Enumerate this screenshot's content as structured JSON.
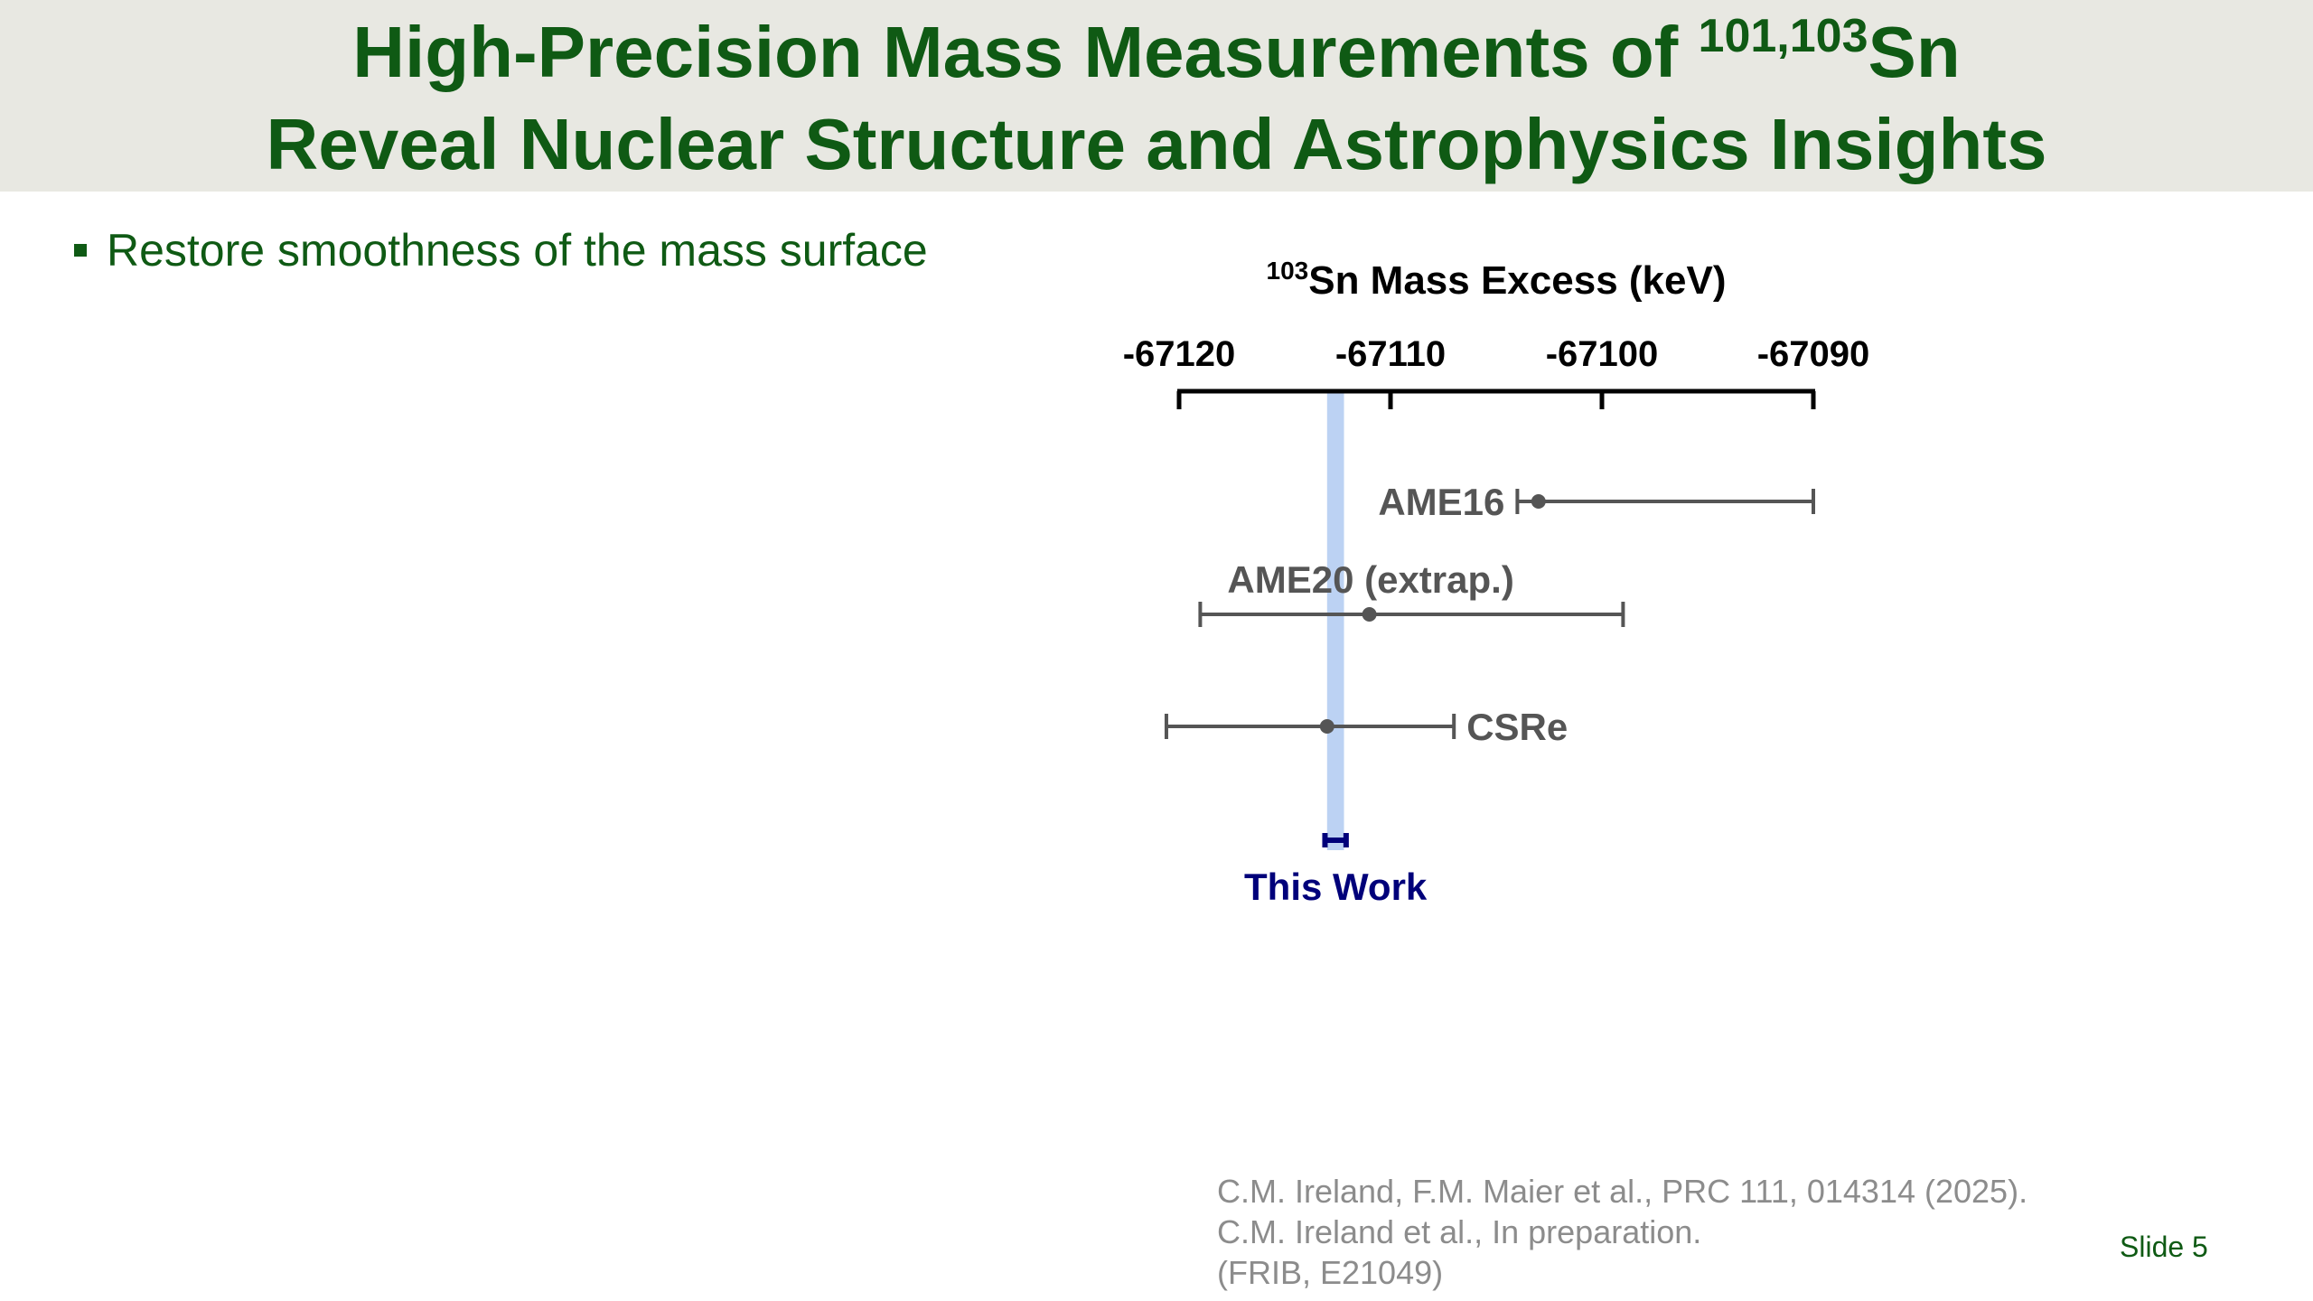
{
  "header": {
    "title_line1_prefix": "High-Precision Mass Measurements of ",
    "title_line1_sup": "101,103",
    "title_line1_suffix": "Sn",
    "title_line2": "Reveal Nuclear Structure and Astrophysics Insights"
  },
  "bullet": {
    "text": "Restore smoothness of the mass surface"
  },
  "chart_data": {
    "type": "errorbar",
    "title_sup": "103",
    "title_main": "Sn Mass Excess (keV)",
    "axis": {
      "position": "top",
      "range": [
        -67120,
        -67090
      ],
      "ticks": [
        -67120,
        -67110,
        -67100,
        -67090
      ],
      "tick_labels": [
        "-67120",
        "-67110",
        "-67100",
        "-67090"
      ]
    },
    "series": [
      {
        "name": "AME16",
        "value": -67103,
        "low": -67104,
        "high": -67090,
        "label_side": "left"
      },
      {
        "name": "AME20 (extrap.)",
        "value": -67111,
        "low": -67119,
        "high": -67099,
        "label_side": "above"
      },
      {
        "name": "CSRe",
        "value": -67113,
        "low": -67120.6,
        "high": -67107,
        "label_side": "right"
      },
      {
        "name": "This Work",
        "value": -67112.6,
        "low": -67113.1,
        "high": -67112.1,
        "label_side": "below"
      }
    ],
    "highlight_band": {
      "center": -67112.6,
      "half_width": 0.4
    },
    "colors": {
      "axis": "#000000",
      "prior": "#555555",
      "this_work": "#00007a",
      "band": "#bcd2f3"
    }
  },
  "references": {
    "line1": "C.M. Ireland, F.M. Maier et al., PRC 111, 014314 (2025).",
    "line2": "C.M. Ireland et al., In preparation.",
    "line3": "(FRIB, E21049)"
  },
  "footer": {
    "slide_label": "Slide 5"
  }
}
